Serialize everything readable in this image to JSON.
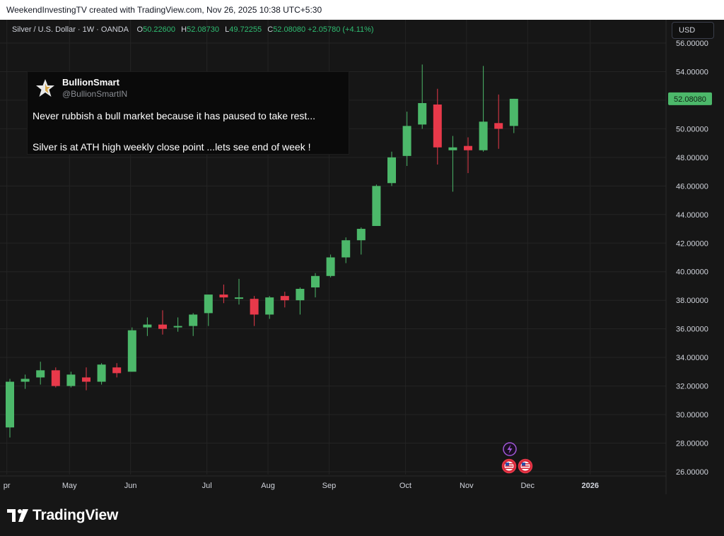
{
  "header": {
    "attribution": "WeekendInvestingTV created with TradingView.com, Nov 26, 2025 10:38 UTC+5:30"
  },
  "legend": {
    "symbol": "Silver / U.S. Dollar · 1W · OANDA",
    "o_key": "O",
    "o_val": "50.22600",
    "h_key": "H",
    "h_val": "52.08730",
    "l_key": "L",
    "l_val": "49.72255",
    "c_key": "C",
    "c_val": "52.08080",
    "change": "+2.05780 (+4.11%)"
  },
  "currency_button": "USD",
  "tweet": {
    "name": "BullionSmart",
    "handle": "@BullionSmartIN",
    "line1": "Never rubbish a bull market because it has paused to take rest...",
    "line2": "Silver is at ATH high weekly close point ...lets see end of week !"
  },
  "brand": {
    "name": "TradingView"
  },
  "colors": {
    "up": "#4cb86a",
    "down": "#e8394a",
    "background": "#161616",
    "grid": "#242424"
  },
  "icons": {
    "event_flash": "lightning-icon",
    "event_flag": "us-flag-icon"
  },
  "chart_data": {
    "type": "candlestick",
    "title": "Silver / U.S. Dollar · 1W · OANDA",
    "ylim": [
      25.5,
      57
    ],
    "y_ticks": [
      "26.00000",
      "28.00000",
      "30.00000",
      "32.00000",
      "34.00000",
      "36.00000",
      "38.00000",
      "40.00000",
      "42.00000",
      "44.00000",
      "46.00000",
      "48.00000",
      "50.00000",
      "52.00000",
      "54.00000",
      "56.00000"
    ],
    "x_ticks": [
      {
        "label": "pr",
        "index": -0.2
      },
      {
        "label": "May",
        "index": 3.9
      },
      {
        "label": "Jun",
        "index": 7.9
      },
      {
        "label": "Jul",
        "index": 12.9
      },
      {
        "label": "Aug",
        "index": 16.9
      },
      {
        "label": "Sep",
        "index": 20.9
      },
      {
        "label": "Oct",
        "index": 25.9
      },
      {
        "label": "Nov",
        "index": 29.9
      },
      {
        "label": "Dec",
        "index": 33.9
      },
      {
        "label": "2026",
        "index": 38.0
      }
    ],
    "last_price_label": "52.08080",
    "grid": true,
    "candles": [
      {
        "o": 29.1,
        "h": 32.5,
        "l": 28.4,
        "c": 32.3
      },
      {
        "o": 32.3,
        "h": 32.8,
        "l": 31.8,
        "c": 32.5
      },
      {
        "o": 32.6,
        "h": 33.7,
        "l": 32.1,
        "c": 33.1
      },
      {
        "o": 33.1,
        "h": 33.3,
        "l": 31.9,
        "c": 32.0
      },
      {
        "o": 32.0,
        "h": 33.0,
        "l": 31.9,
        "c": 32.8
      },
      {
        "o": 32.6,
        "h": 33.3,
        "l": 31.7,
        "c": 32.3
      },
      {
        "o": 32.3,
        "h": 33.6,
        "l": 32.1,
        "c": 33.5
      },
      {
        "o": 33.3,
        "h": 33.6,
        "l": 32.6,
        "c": 32.9
      },
      {
        "o": 33.0,
        "h": 36.1,
        "l": 33.0,
        "c": 35.9
      },
      {
        "o": 36.1,
        "h": 36.8,
        "l": 35.5,
        "c": 36.3
      },
      {
        "o": 36.3,
        "h": 37.3,
        "l": 35.6,
        "c": 36.0
      },
      {
        "o": 36.2,
        "h": 36.8,
        "l": 35.8,
        "c": 36.2
      },
      {
        "o": 36.2,
        "h": 37.1,
        "l": 35.5,
        "c": 37.0
      },
      {
        "o": 37.1,
        "h": 38.4,
        "l": 36.2,
        "c": 38.4
      },
      {
        "o": 38.4,
        "h": 39.1,
        "l": 37.8,
        "c": 38.2
      },
      {
        "o": 38.2,
        "h": 39.5,
        "l": 37.7,
        "c": 38.2
      },
      {
        "o": 38.1,
        "h": 38.3,
        "l": 36.2,
        "c": 37.0
      },
      {
        "o": 37.0,
        "h": 38.3,
        "l": 36.7,
        "c": 38.2
      },
      {
        "o": 38.3,
        "h": 38.6,
        "l": 37.5,
        "c": 38.0
      },
      {
        "o": 38.0,
        "h": 38.9,
        "l": 37.0,
        "c": 38.8
      },
      {
        "o": 38.9,
        "h": 39.9,
        "l": 38.2,
        "c": 39.7
      },
      {
        "o": 39.7,
        "h": 41.2,
        "l": 39.6,
        "c": 41.0
      },
      {
        "o": 41.0,
        "h": 42.4,
        "l": 40.6,
        "c": 42.2
      },
      {
        "o": 42.2,
        "h": 43.1,
        "l": 41.2,
        "c": 43.0
      },
      {
        "o": 43.2,
        "h": 46.1,
        "l": 43.2,
        "c": 46.0
      },
      {
        "o": 46.2,
        "h": 48.4,
        "l": 46.0,
        "c": 48.0
      },
      {
        "o": 48.1,
        "h": 51.2,
        "l": 47.4,
        "c": 50.2
      },
      {
        "o": 50.3,
        "h": 54.5,
        "l": 50.0,
        "c": 51.8
      },
      {
        "o": 51.7,
        "h": 52.8,
        "l": 47.5,
        "c": 48.7
      },
      {
        "o": 48.5,
        "h": 49.5,
        "l": 45.6,
        "c": 48.7
      },
      {
        "o": 48.8,
        "h": 49.4,
        "l": 46.9,
        "c": 48.5
      },
      {
        "o": 48.5,
        "h": 54.4,
        "l": 48.4,
        "c": 50.5
      },
      {
        "o": 50.4,
        "h": 52.4,
        "l": 48.6,
        "c": 50.0
      },
      {
        "o": 50.2,
        "h": 52.1,
        "l": 49.7,
        "c": 52.1
      }
    ]
  }
}
